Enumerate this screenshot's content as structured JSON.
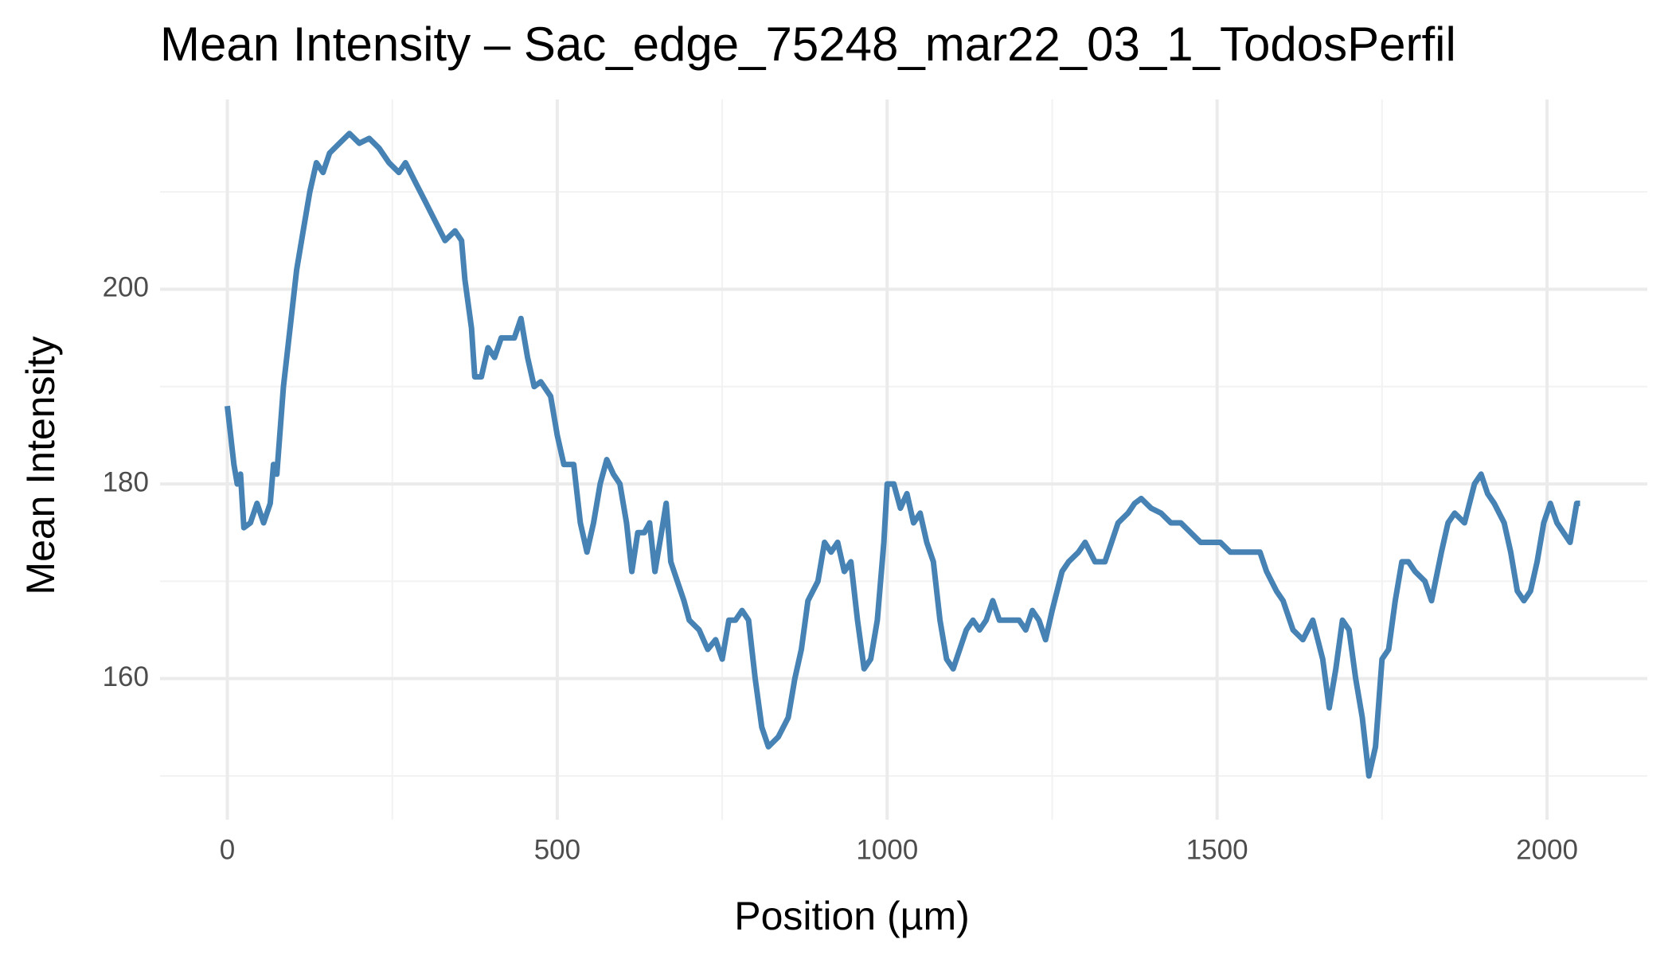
{
  "chart_data": {
    "type": "line",
    "title": "Mean Intensity – Sac_edge_75248_mar22_03_1_TodosPerfil",
    "xlabel": "Position (µm)",
    "ylabel": "Mean Intensity",
    "x": [
      0,
      10,
      15,
      20,
      25,
      35,
      45,
      55,
      65,
      70,
      75,
      85,
      95,
      105,
      115,
      125,
      135,
      145,
      155,
      170,
      185,
      200,
      215,
      230,
      245,
      260,
      270,
      285,
      300,
      315,
      330,
      345,
      355,
      360,
      370,
      375,
      385,
      395,
      405,
      415,
      425,
      435,
      445,
      455,
      465,
      475,
      490,
      500,
      510,
      525,
      535,
      545,
      555,
      565,
      575,
      585,
      595,
      605,
      613,
      622,
      632,
      640,
      648,
      658,
      665,
      672,
      682,
      692,
      700,
      715,
      728,
      740,
      750,
      760,
      770,
      780,
      790,
      800,
      810,
      820,
      835,
      850,
      860,
      870,
      880,
      895,
      905,
      915,
      925,
      935,
      945,
      955,
      965,
      975,
      985,
      995,
      1000,
      1010,
      1020,
      1030,
      1040,
      1050,
      1060,
      1070,
      1080,
      1090,
      1100,
      1110,
      1120,
      1130,
      1140,
      1150,
      1160,
      1170,
      1180,
      1190,
      1200,
      1210,
      1220,
      1230,
      1240,
      1250,
      1265,
      1275,
      1290,
      1300,
      1315,
      1330,
      1340,
      1350,
      1365,
      1375,
      1385,
      1400,
      1415,
      1430,
      1445,
      1460,
      1475,
      1490,
      1505,
      1520,
      1535,
      1550,
      1565,
      1575,
      1590,
      1600,
      1615,
      1630,
      1645,
      1660,
      1670,
      1680,
      1690,
      1700,
      1710,
      1720,
      1730,
      1740,
      1750,
      1760,
      1770,
      1780,
      1790,
      1800,
      1815,
      1825,
      1840,
      1850,
      1860,
      1875,
      1890,
      1900,
      1910,
      1920,
      1935,
      1945,
      1955,
      1965,
      1975,
      1985,
      1995,
      2005,
      2015,
      2025,
      2035,
      2045,
      2050
    ],
    "series": [
      {
        "name": "Mean Intensity",
        "color": "#4682b4",
        "values": [
          188,
          182,
          180,
          181,
          175.5,
          176,
          178,
          176,
          178,
          182,
          181,
          190,
          196,
          202,
          206,
          210,
          213,
          212,
          214,
          215,
          216,
          215,
          215.5,
          214.5,
          213,
          212,
          213,
          211,
          209,
          207,
          205,
          206,
          205,
          201,
          196,
          191,
          191,
          194,
          193,
          195,
          195,
          195,
          197,
          193,
          190,
          190.5,
          189,
          185,
          182,
          182,
          176,
          173,
          176,
          180,
          182.5,
          181,
          180,
          176,
          171,
          175,
          175,
          176,
          171,
          175,
          178,
          172,
          170,
          168,
          166,
          165,
          163,
          164,
          162,
          166,
          166,
          167,
          166,
          160,
          155,
          153,
          154,
          156,
          160,
          163,
          168,
          170,
          174,
          173,
          174,
          171,
          172,
          166,
          161,
          162,
          166,
          174,
          180,
          180,
          177.5,
          179,
          176,
          177,
          174,
          172,
          166,
          162,
          161,
          163,
          165,
          166,
          165,
          166,
          168,
          166,
          166,
          166,
          166,
          165,
          167,
          166,
          164,
          167,
          171,
          172,
          173,
          174,
          172,
          172,
          174,
          176,
          177,
          178,
          178.5,
          177.5,
          177,
          176,
          176,
          175,
          174,
          174,
          174,
          173,
          173,
          173,
          173,
          171,
          169,
          168,
          165,
          164,
          166,
          162,
          157,
          161,
          166,
          165,
          160,
          156,
          150,
          153,
          162,
          163,
          168,
          172,
          172,
          171,
          170,
          168,
          173,
          176,
          177,
          176,
          180,
          181,
          179,
          178,
          176,
          173,
          169,
          168,
          169,
          172,
          176,
          178,
          176,
          175,
          174,
          178,
          178
        ]
      }
    ],
    "xlim": [
      -102,
      2152
    ],
    "ylim": [
      145.5,
      219.5
    ],
    "xticks": [
      0,
      500,
      1000,
      1500,
      2000
    ],
    "yticks": [
      160,
      180,
      200
    ],
    "minor_xticks": [
      250,
      750,
      1250,
      1750
    ],
    "minor_yticks": [
      150,
      170,
      190,
      210
    ],
    "grid": true
  }
}
